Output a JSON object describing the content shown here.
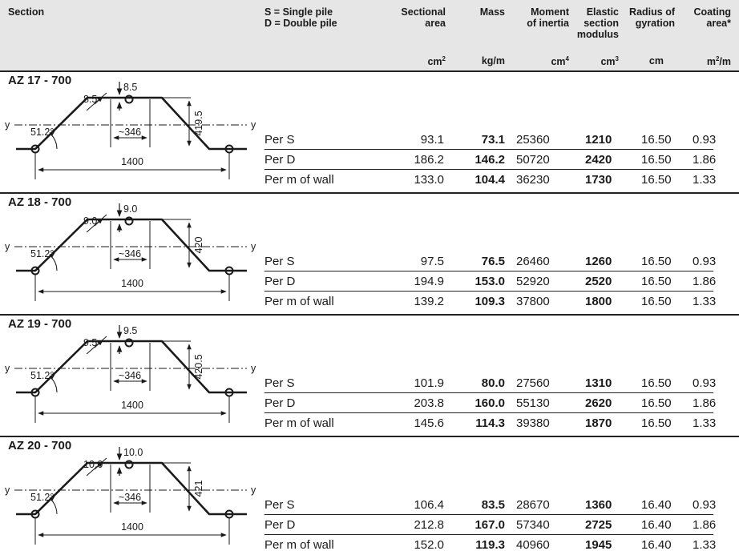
{
  "header": {
    "section": "Section",
    "pile_def_1": "S = Single pile",
    "pile_def_2": "D = Double pile",
    "sectional_area": [
      "Sectional",
      "area"
    ],
    "mass": "Mass",
    "moment": [
      "Moment",
      "of inertia"
    ],
    "elastic": [
      "Elastic",
      "section",
      "modulus"
    ],
    "radius": [
      "Radius of",
      "gyration"
    ],
    "coating": [
      "Coating",
      "area*"
    ],
    "units": {
      "sectional_area": "cm",
      "mass": "kg/m",
      "moment": "cm",
      "elastic": "cm",
      "radius": "cm",
      "coating": "m",
      "coating_tail": "/m"
    },
    "unit_exponents": {
      "sectional_area": "2",
      "moment": "4",
      "elastic": "3",
      "coating": "2"
    }
  },
  "sections": [
    {
      "name": "AZ 17 - 700",
      "dims": {
        "thickness_top": "8.5",
        "thickness_web": "8.5",
        "height": "419.5",
        "flange": "~346",
        "angle": "51.2°",
        "width": "1400",
        "axis": "y"
      },
      "rows": [
        {
          "label": "Per S",
          "area": "93.1",
          "mass": "73.1",
          "inertia": "25360",
          "modulus": "1210",
          "gyration": "16.50",
          "coating": "0.93"
        },
        {
          "label": "Per D",
          "area": "186.2",
          "mass": "146.2",
          "inertia": "50720",
          "modulus": "2420",
          "gyration": "16.50",
          "coating": "1.86"
        },
        {
          "label": "Per m of wall",
          "area": "133.0",
          "mass": "104.4",
          "inertia": "36230",
          "modulus": "1730",
          "gyration": "16.50",
          "coating": "1.33"
        }
      ]
    },
    {
      "name": "AZ 18 - 700",
      "dims": {
        "thickness_top": "9.0",
        "thickness_web": "9.0",
        "height": "420",
        "flange": "~346",
        "angle": "51.2°",
        "width": "1400",
        "axis": "y"
      },
      "rows": [
        {
          "label": "Per S",
          "area": "97.5",
          "mass": "76.5",
          "inertia": "26460",
          "modulus": "1260",
          "gyration": "16.50",
          "coating": "0.93"
        },
        {
          "label": "Per D",
          "area": "194.9",
          "mass": "153.0",
          "inertia": "52920",
          "modulus": "2520",
          "gyration": "16.50",
          "coating": "1.86"
        },
        {
          "label": "Per m of wall",
          "area": "139.2",
          "mass": "109.3",
          "inertia": "37800",
          "modulus": "1800",
          "gyration": "16.50",
          "coating": "1.33"
        }
      ]
    },
    {
      "name": "AZ 19 - 700",
      "dims": {
        "thickness_top": "9.5",
        "thickness_web": "9.5",
        "height": "420.5",
        "flange": "~346",
        "angle": "51.2°",
        "width": "1400",
        "axis": "y"
      },
      "rows": [
        {
          "label": "Per S",
          "area": "101.9",
          "mass": "80.0",
          "inertia": "27560",
          "modulus": "1310",
          "gyration": "16.50",
          "coating": "0.93"
        },
        {
          "label": "Per D",
          "area": "203.8",
          "mass": "160.0",
          "inertia": "55130",
          "modulus": "2620",
          "gyration": "16.50",
          "coating": "1.86"
        },
        {
          "label": "Per m of wall",
          "area": "145.6",
          "mass": "114.3",
          "inertia": "39380",
          "modulus": "1870",
          "gyration": "16.50",
          "coating": "1.33"
        }
      ]
    },
    {
      "name": "AZ 20 - 700",
      "dims": {
        "thickness_top": "10.0",
        "thickness_web": "10.0",
        "height": "421",
        "flange": "~346",
        "angle": "51.2°",
        "width": "1400",
        "axis": "y"
      },
      "rows": [
        {
          "label": "Per S",
          "area": "106.4",
          "mass": "83.5",
          "inertia": "28670",
          "modulus": "1360",
          "gyration": "16.40",
          "coating": "0.93"
        },
        {
          "label": "Per D",
          "area": "212.8",
          "mass": "167.0",
          "inertia": "57340",
          "modulus": "2725",
          "gyration": "16.40",
          "coating": "1.86"
        },
        {
          "label": "Per m of wall",
          "area": "152.0",
          "mass": "119.3",
          "inertia": "40960",
          "modulus": "1945",
          "gyration": "16.40",
          "coating": "1.33"
        }
      ]
    }
  ]
}
